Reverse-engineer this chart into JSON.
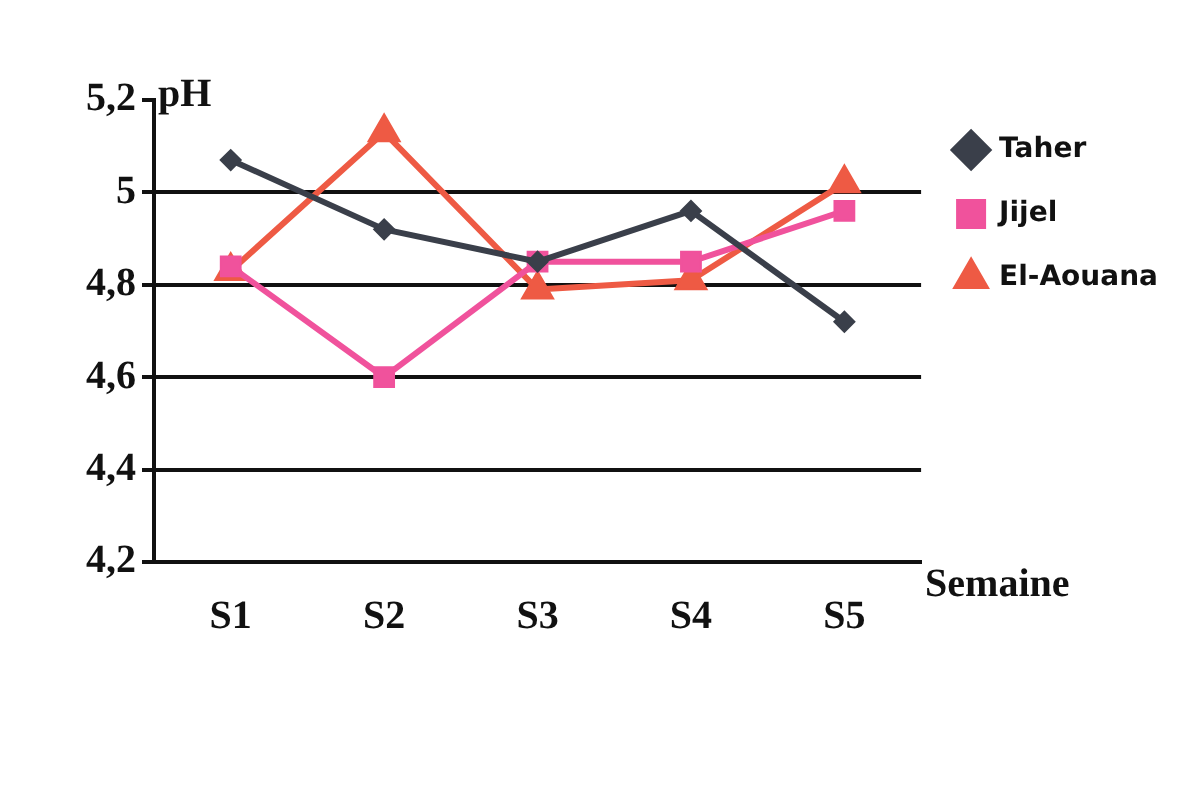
{
  "chart_data": {
    "type": "line",
    "xlabel": "Semaine",
    "ylabel": "pH",
    "categories": [
      "S1",
      "S2",
      "S3",
      "S4",
      "S5"
    ],
    "series": [
      {
        "name": "Taher",
        "color": "#3a3f4a",
        "marker": "diamond",
        "values": [
          5.07,
          4.92,
          4.85,
          4.96,
          4.72
        ]
      },
      {
        "name": "Jijel",
        "color": "#f0529c",
        "marker": "square",
        "values": [
          4.84,
          4.6,
          4.85,
          4.85,
          4.96
        ]
      },
      {
        "name": "El-Aouana",
        "color": "#ee5a44",
        "marker": "triangle",
        "values": [
          4.83,
          5.13,
          4.79,
          4.81,
          5.02
        ]
      }
    ],
    "ylim": [
      4.2,
      5.2
    ],
    "yticks": [
      {
        "value": 4.2,
        "label": "4,2"
      },
      {
        "value": 4.4,
        "label": "4,4"
      },
      {
        "value": 4.6,
        "label": "4,6"
      },
      {
        "value": 4.8,
        "label": "4,8"
      },
      {
        "value": 5,
        "label": "5"
      },
      {
        "value": 5.2,
        "label": "5,2"
      }
    ],
    "grid": "y",
    "legend": "top right",
    "line_style": "solid"
  }
}
